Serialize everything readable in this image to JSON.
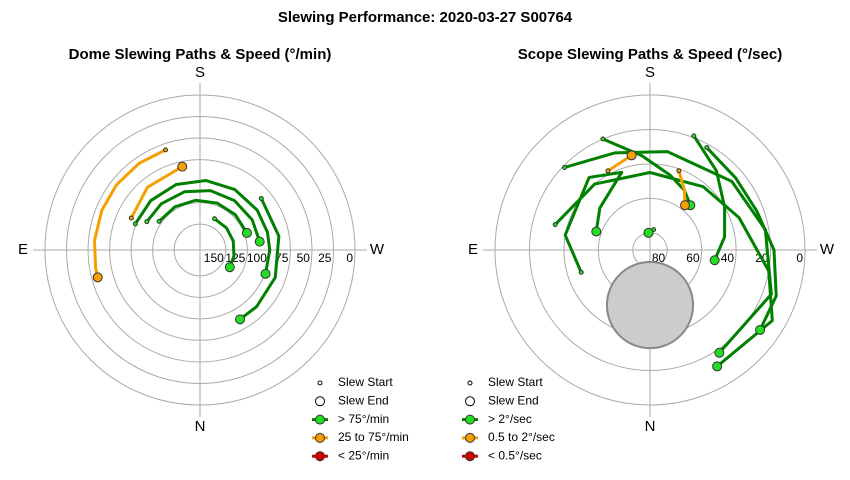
{
  "title": "Slewing Performance: 2020-03-27 S00764",
  "chart_data": [
    {
      "type": "polar",
      "title": "Dome Slewing Paths & Speed (°/min)",
      "directions": [
        "S",
        "W",
        "N",
        "E"
      ],
      "rlim": [
        180,
        0
      ],
      "rticks": [
        150,
        125,
        100,
        75,
        50,
        25,
        0
      ],
      "legend": [
        {
          "label": "Slew Start",
          "kind": "start",
          "color": "#000000"
        },
        {
          "label": "Slew End",
          "kind": "end",
          "color": "#000000"
        },
        {
          "label": "> 75°/min",
          "kind": "line",
          "color": "#008000",
          "marker_color": "#22dd22"
        },
        {
          "label": "25 to 75°/min",
          "kind": "line",
          "color": "#f5a000",
          "marker_color": "#f5a000"
        },
        {
          "label": "< 25°/min",
          "kind": "line",
          "color": "#d00000",
          "marker_color": "#d00000"
        }
      ],
      "slews": [
        {
          "color": "#f5a000",
          "marker_color": "#f5a000",
          "az": [
            161,
            145,
            128,
            112,
            95,
            80,
            75
          ],
          "r": [
            57,
            57,
            57,
            57,
            57,
            57,
            57
          ]
        },
        {
          "color": "#008000",
          "marker_color": "#22dd22",
          "az": [
            112,
            135,
            160,
            185,
            210,
            235,
            255,
            270,
            290
          ],
          "r": [
            99,
            99,
            99,
            99,
            99,
            99,
            99,
            99,
            99
          ]
        },
        {
          "color": "#008000",
          "marker_color": "#22dd22",
          "az": [
            118,
            140,
            165,
            190,
            215,
            240,
            262
          ],
          "r": [
            110,
            110,
            110,
            110,
            110,
            110,
            110
          ]
        },
        {
          "color": "#008000",
          "marker_color": "#22dd22",
          "az": [
            125,
            150,
            175,
            200,
            225,
            250
          ],
          "r": [
            122,
            122,
            122,
            122,
            122,
            122
          ]
        },
        {
          "color": "#008000",
          "marker_color": "#22dd22",
          "az": [
            205,
            230,
            255,
            280,
            300
          ],
          "r": [
            140,
            140,
            140,
            140,
            140
          ]
        },
        {
          "color": "#008000",
          "marker_color": "#22dd22",
          "az": [
            230,
            260,
            290,
            315,
            330
          ],
          "r": [
            87,
            87,
            87,
            87,
            87
          ]
        },
        {
          "color": "#f5a000",
          "marker_color": "#f5a000",
          "az": [
            115,
            140,
            168
          ],
          "r": [
            92,
            85,
            81
          ]
        }
      ]
    },
    {
      "type": "polar",
      "title": "Scope Slewing Paths & Speed (°/sec)",
      "directions": [
        "S",
        "W",
        "N",
        "E"
      ],
      "rlim": [
        90,
        0
      ],
      "rticks": [
        80,
        60,
        40,
        20,
        0
      ],
      "exclusion_zone": {
        "az": 0,
        "alt": 58,
        "radius_deg": 25
      },
      "legend": [
        {
          "label": "Slew Start",
          "kind": "start",
          "color": "#000000"
        },
        {
          "label": "Slew End",
          "kind": "end",
          "color": "#000000"
        },
        {
          "label": "> 2°/sec",
          "kind": "line",
          "color": "#008000",
          "marker_color": "#22dd22"
        },
        {
          "label": "0.5 to 2°/sec",
          "kind": "line",
          "color": "#f5a000",
          "marker_color": "#f5a000"
        },
        {
          "label": "< 0.5°/sec",
          "kind": "line",
          "color": "#d00000",
          "marker_color": "#d00000"
        }
      ],
      "slews": [
        {
          "color": "#008000",
          "marker_color": "#22dd22",
          "az": [
            134,
            160,
            190,
            230,
            260,
            290,
            326
          ],
          "r": [
            21,
            30,
            32,
            28,
            22,
            15,
            18
          ]
        },
        {
          "color": "#008000",
          "marker_color": "#22dd22",
          "az": [
            105,
            140,
            180,
            220,
            250,
            280,
            300,
            330
          ],
          "r": [
            33,
            40,
            45,
            42,
            35,
            20,
            8,
            12
          ]
        },
        {
          "color": "#008000",
          "marker_color": "#22dd22",
          "az": [
            157,
            175,
            195,
            210,
            222
          ],
          "r": [
            20,
            35,
            45,
            50,
            55
          ]
        },
        {
          "color": "#008000",
          "marker_color": "#22dd22",
          "az": [
            201,
            220,
            240,
            260,
            279
          ],
          "r": [
            19,
            30,
            40,
            46,
            52
          ]
        },
        {
          "color": "#008000",
          "marker_color": "#22dd22",
          "az": [
            209,
            230,
            250,
            270,
            290,
            306
          ],
          "r": [
            22,
            25,
            24,
            18,
            12,
            11
          ]
        },
        {
          "color": "#008000",
          "marker_color": "#22dd22",
          "az": [
            72,
            100,
            140,
            160,
            130,
            109
          ],
          "r": [
            48,
            40,
            35,
            42,
            52,
            57
          ]
        },
        {
          "color": "#f5a000",
          "marker_color": "#f5a000",
          "az": [
            152,
            169
          ],
          "r": [
            38,
            34
          ]
        },
        {
          "color": "#f5a000",
          "marker_color": "#f5a000",
          "az": [
            200,
            210,
            218
          ],
          "r": [
            41,
            50,
            57
          ]
        },
        {
          "color": "#008000",
          "marker_color": "#22dd22",
          "az": [
            190,
            175
          ],
          "r": [
            78,
            80
          ]
        }
      ]
    }
  ]
}
